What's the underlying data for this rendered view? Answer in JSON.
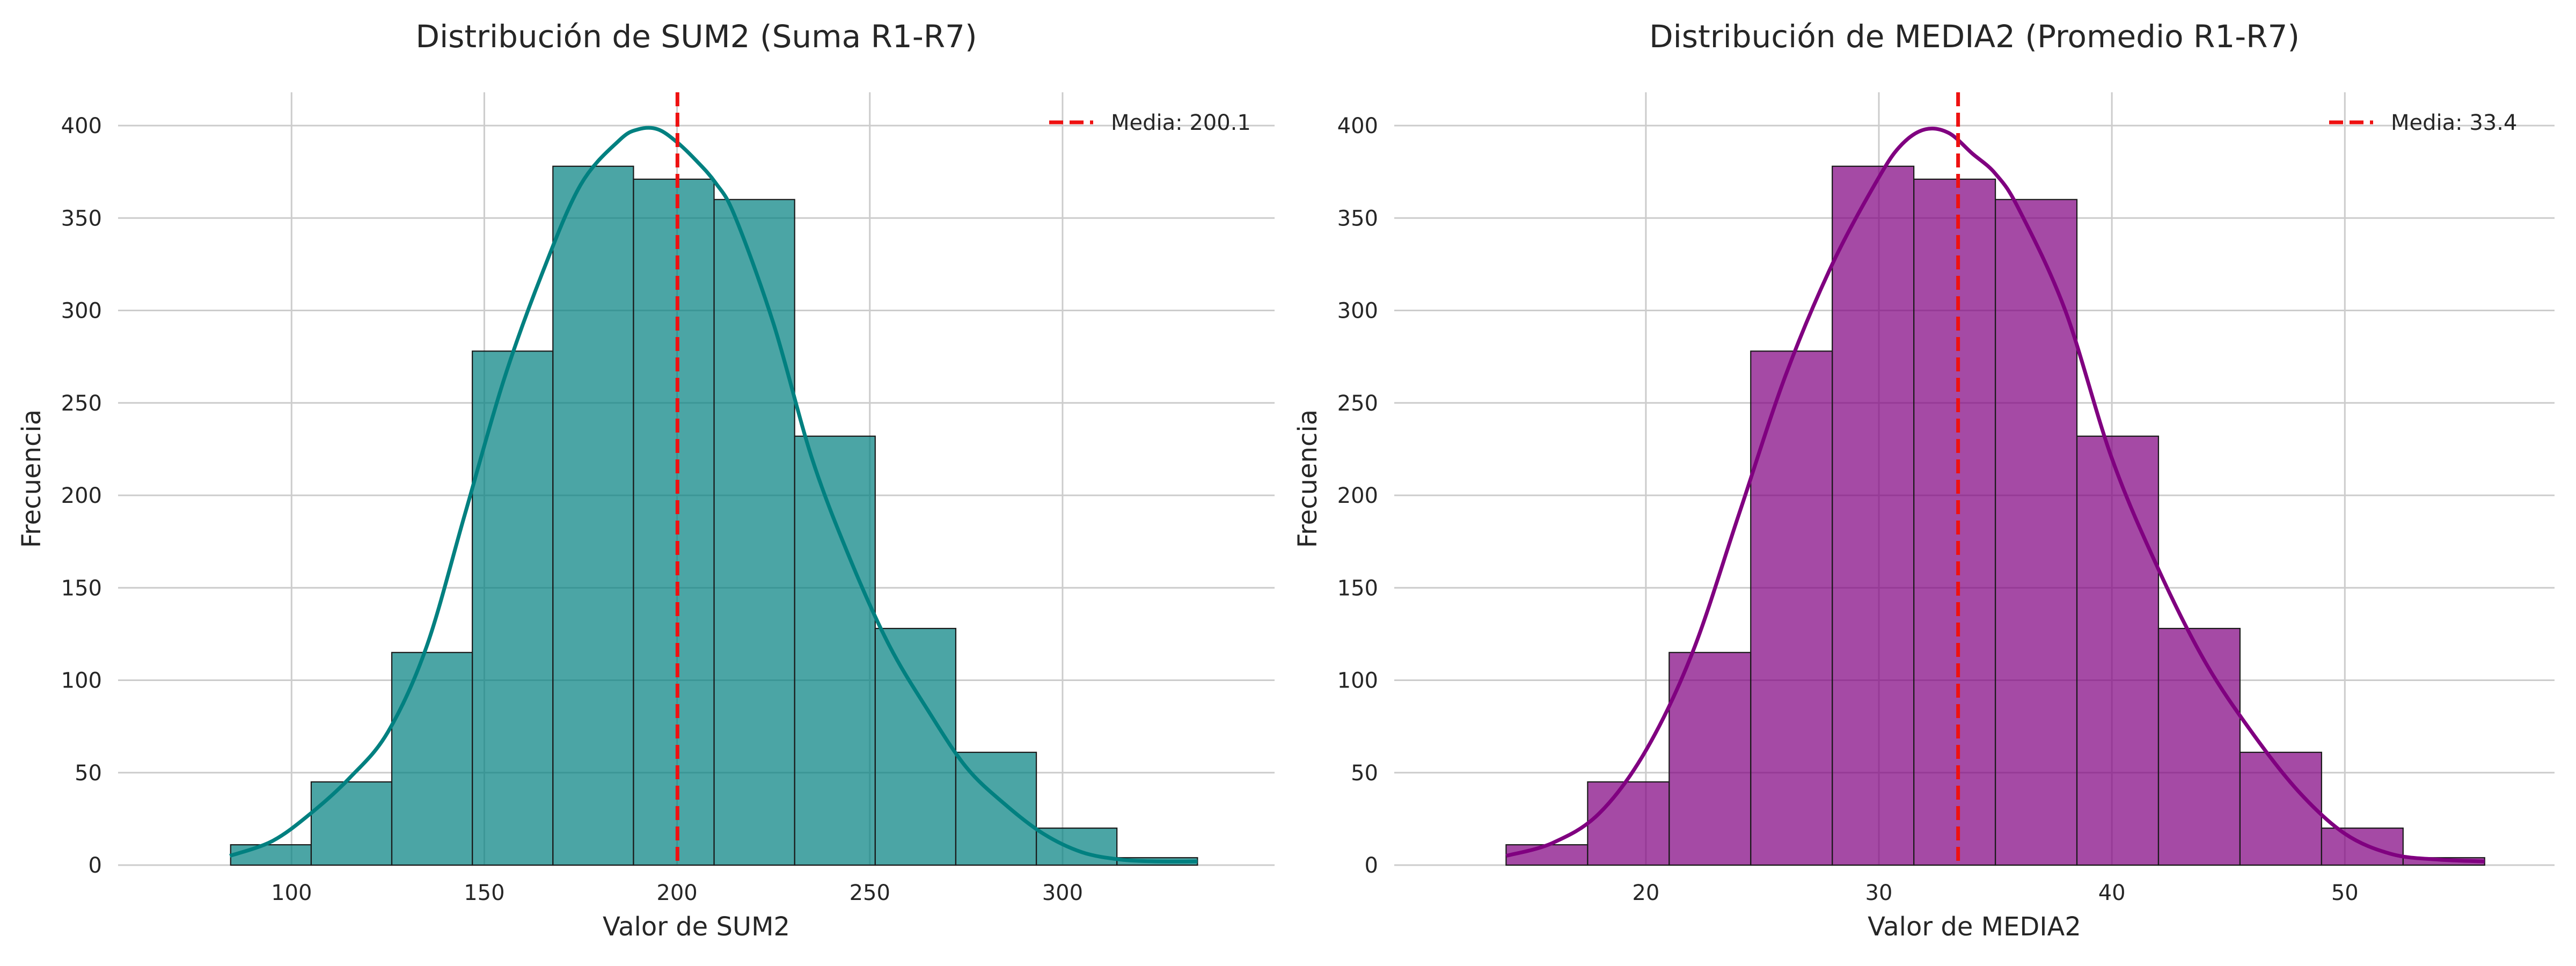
{
  "chart_data": [
    {
      "type": "bar",
      "title": "Distribución de SUM2 (Suma R1-R7)",
      "xlabel": "Valor de SUM2",
      "ylabel": "Frecuencia",
      "bin_edges": [
        84.2,
        105.1,
        126.0,
        146.9,
        167.8,
        188.7,
        209.6,
        230.5,
        251.4,
        272.3,
        293.2,
        314.1,
        335.0
      ],
      "values": [
        11,
        45,
        115,
        278,
        378,
        371,
        360,
        232,
        128,
        61,
        20,
        4
      ],
      "xlim": [
        55,
        355
      ],
      "ylim": [
        0,
        418
      ],
      "xticks": [
        100,
        150,
        200,
        250,
        300
      ],
      "yticks": [
        0,
        50,
        100,
        150,
        200,
        250,
        300,
        350,
        400
      ],
      "kde": {
        "x": [
          84,
          95,
          105,
          115,
          125,
          135,
          145,
          155,
          165,
          175,
          185,
          190,
          195,
          200,
          205,
          210,
          215,
          225,
          235,
          245,
          255,
          265,
          275,
          285,
          295,
          305,
          315,
          325,
          335
        ],
        "y": [
          5,
          13,
          28,
          47,
          72,
          118,
          190,
          262,
          320,
          368,
          392,
          398,
          398,
          391,
          381,
          369,
          351,
          293,
          220,
          165,
          119,
          84,
          53,
          33,
          17,
          7,
          3,
          2,
          2
        ]
      },
      "mean": 200.1,
      "legend": {
        "label": "Media: 200.1",
        "position": "top-right"
      },
      "grid": true,
      "colors": {
        "bars": "#018080",
        "kde": "#018080",
        "mean": "#ee1111"
      }
    },
    {
      "type": "bar",
      "title": "Distribución de MEDIA2 (Promedio R1-R7)",
      "xlabel": "Valor de MEDIA2",
      "ylabel": "Frecuencia",
      "bin_edges": [
        14.0,
        17.5,
        21.0,
        24.5,
        28.0,
        31.5,
        35.0,
        38.5,
        42.0,
        45.5,
        49.0,
        52.5,
        56.0
      ],
      "values": [
        11,
        45,
        115,
        278,
        378,
        371,
        360,
        232,
        128,
        61,
        20,
        4
      ],
      "xlim": [
        9.2,
        59.0
      ],
      "ylim": [
        0,
        418
      ],
      "xticks": [
        20,
        30,
        40,
        50
      ],
      "yticks": [
        0,
        50,
        100,
        150,
        200,
        250,
        300,
        350,
        400
      ],
      "kde": {
        "x": [
          14,
          16,
          18,
          20,
          22,
          24,
          26,
          28,
          30,
          31,
          32,
          33,
          34,
          35,
          36,
          38,
          40,
          42,
          44,
          46,
          48,
          50,
          52,
          54,
          56
        ],
        "y": [
          5,
          12,
          28,
          62,
          115,
          190,
          265,
          325,
          372,
          390,
          398,
          396,
          385,
          374,
          355,
          300,
          220,
          160,
          110,
          72,
          40,
          17,
          6,
          3,
          2
        ]
      },
      "mean": 33.4,
      "legend": {
        "label": "Media: 33.4",
        "position": "top-right"
      },
      "grid": true,
      "colors": {
        "bars": "#800080",
        "kde": "#800080",
        "mean": "#ee1111"
      }
    }
  ]
}
